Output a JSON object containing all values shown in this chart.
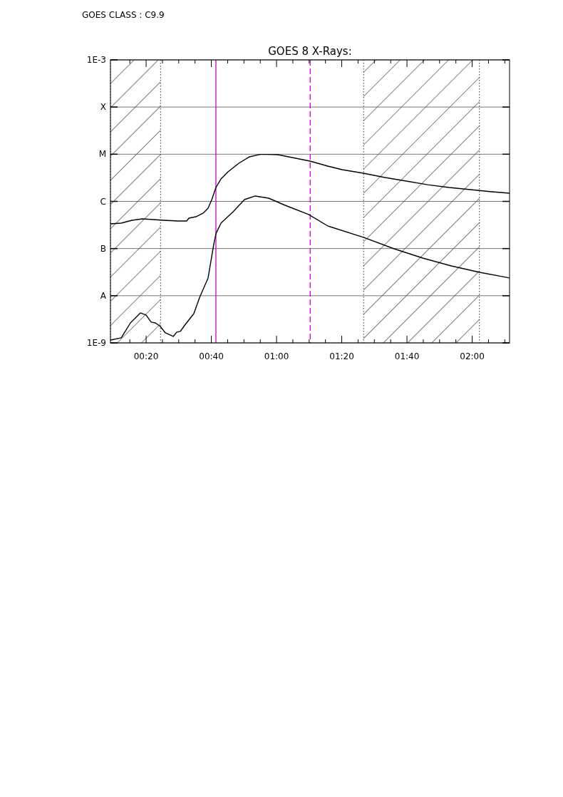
{
  "chart_data": {
    "type": "line",
    "title": "GOES 8 X-Rays:",
    "annotations": [
      "GOES CLASS : C9.9"
    ],
    "xlim": [
      0.151,
      2.191
    ],
    "xticks": [
      {
        "value": 0.25,
        "label": null
      },
      {
        "value": 0.3333,
        "label": "00:20"
      },
      {
        "value": 0.4167,
        "label": null
      },
      {
        "value": 0.5,
        "label": null
      },
      {
        "value": 0.5833,
        "label": null
      },
      {
        "value": 0.6667,
        "label": "00:40"
      },
      {
        "value": 0.75,
        "label": null
      },
      {
        "value": 0.8333,
        "label": null
      },
      {
        "value": 0.9167,
        "label": null
      },
      {
        "value": 1,
        "label": "01:00"
      },
      {
        "value": 1.0833,
        "label": null
      },
      {
        "value": 1.1667,
        "label": null
      },
      {
        "value": 1.25,
        "label": null
      },
      {
        "value": 1.3333,
        "label": "01:20"
      },
      {
        "value": 1.4167,
        "label": null
      },
      {
        "value": 1.5,
        "label": null
      },
      {
        "value": 1.5833,
        "label": null
      },
      {
        "value": 1.6667,
        "label": "01:40"
      },
      {
        "value": 1.75,
        "label": null
      },
      {
        "value": 1.8333,
        "label": null
      },
      {
        "value": 1.9167,
        "label": null
      },
      {
        "value": 2,
        "label": "02:00"
      },
      {
        "value": 2.0833,
        "label": null
      },
      {
        "value": 2.1667,
        "label": null
      }
    ],
    "ylim": [
      1e-09,
      0.001
    ],
    "log": "y",
    "yticks": [
      {
        "value": 1e-09,
        "label": "1E-9"
      },
      {
        "value": 1e-08,
        "label": "A"
      },
      {
        "value": 1e-07,
        "label": "B"
      },
      {
        "value": 1e-06,
        "label": "C"
      },
      {
        "value": 1e-05,
        "label": "M"
      },
      {
        "value": 0.0001,
        "label": "X"
      },
      {
        "value": 0.001,
        "label": "1E-3"
      }
    ],
    "grid": "y",
    "line_style": "solid",
    "bands": [
      {
        "axis": "x",
        "from": 0.151,
        "to": 0.407
      },
      {
        "axis": "x",
        "from": 1.445,
        "to": 2.037
      }
    ],
    "ref_lines": [
      {
        "axis": "x",
        "value": 0.69,
        "color": "#cc00cc",
        "line_style": "solid"
      },
      {
        "axis": "x",
        "value": 1.172,
        "color": "#cc00cc",
        "line_style": "dashed"
      }
    ],
    "series": [
      {
        "color": "#000000",
        "x": [
          0.151,
          0.206,
          0.261,
          0.315,
          0.37,
          0.424,
          0.497,
          0.541,
          0.552,
          0.588,
          0.625,
          0.65,
          0.669,
          0.69,
          0.716,
          0.752,
          0.807,
          0.862,
          0.916,
          0.953,
          1.007,
          1.08,
          1.171,
          1.262,
          1.335,
          1.444,
          1.554,
          1.663,
          1.772,
          1.882,
          1.991,
          2.1,
          2.191
        ],
        "values": [
          3.34e-07,
          3.46e-07,
          3.98e-07,
          4.27e-07,
          4.12e-07,
          3.98e-07,
          3.85e-07,
          3.85e-07,
          4.42e-07,
          4.73e-07,
          5.64e-07,
          7.19e-07,
          1.09e-06,
          1.97e-06,
          2.99e-06,
          4.24e-06,
          6.44e-06,
          8.81e-06,
          9.9e-06,
          9.9e-06,
          9.77e-06,
          8.51e-06,
          7.15e-06,
          5.6e-06,
          4.71e-06,
          3.95e-06,
          3.21e-06,
          2.7e-06,
          2.26e-06,
          1.97e-06,
          1.78e-06,
          1.6e-06,
          1.49e-06
        ]
      },
      {
        "color": "#000000",
        "x": [
          0.151,
          0.206,
          0.253,
          0.304,
          0.333,
          0.359,
          0.381,
          0.406,
          0.432,
          0.472,
          0.49,
          0.508,
          0.534,
          0.577,
          0.607,
          0.65,
          0.679,
          0.69,
          0.716,
          0.778,
          0.836,
          0.891,
          0.96,
          1.044,
          1.164,
          1.262,
          1.444,
          1.601,
          1.747,
          1.893,
          2.038,
          2.191
        ],
        "values": [
          1.15e-09,
          1.28e-09,
          2.65e-09,
          4.32e-09,
          3.89e-09,
          2.75e-09,
          2.65e-09,
          2.23e-09,
          1.63e-09,
          1.37e-09,
          1.69e-09,
          1.75e-09,
          2.47e-09,
          4.17e-09,
          9.27e-09,
          2.38e-08,
          1.22e-07,
          2.06e-07,
          3.46e-07,
          6.04e-07,
          1.09e-06,
          1.3e-06,
          1.17e-06,
          8.26e-07,
          5.26e-07,
          3.01e-07,
          1.73e-07,
          9.89e-08,
          6.29e-08,
          4.29e-08,
          3.13e-08,
          2.38e-08
        ]
      }
    ]
  }
}
